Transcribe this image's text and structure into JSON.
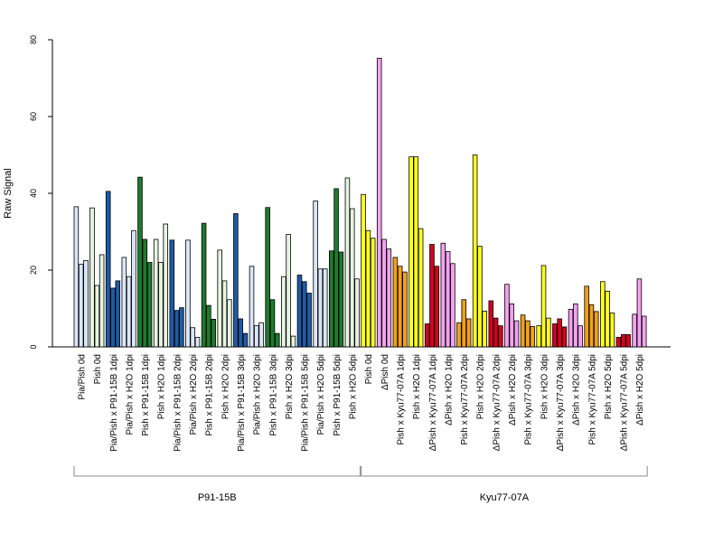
{
  "chart_data": {
    "type": "bar",
    "ylabel": "Raw Signal",
    "xlabel": "",
    "title": "",
    "ylim": [
      0,
      80
    ],
    "yticks": [
      0,
      20,
      40,
      60,
      80
    ],
    "grid": false,
    "colors": {
      "light_blue": "#dbe7f8",
      "dark_blue": "#1f5ba5",
      "light_green": "#e6f4e1",
      "dark_green": "#1f7a2e",
      "yellow": "#ffff22",
      "pink": "#f4a3f0",
      "orange": "#f2a11c",
      "red": "#d4001e"
    },
    "groups": [
      {
        "label": "Pia/Pish 0d",
        "color": "light_blue",
        "values": [
          36.5,
          21.5,
          22.5
        ]
      },
      {
        "label": "Pish 0d",
        "color": "light_green",
        "values": [
          36.2,
          16.0,
          24.0
        ]
      },
      {
        "label": "Pia/Pish x P91-15B 1dpi",
        "color": "dark_blue",
        "values": [
          40.5,
          15.3,
          17.2
        ]
      },
      {
        "label": "Pia/Pish x H2O 1dpi",
        "color": "light_blue",
        "values": [
          23.3,
          18.3,
          30.3
        ]
      },
      {
        "label": "Pish x P91-15B 1dpi",
        "color": "dark_green",
        "values": [
          44.2,
          28.0,
          22.0
        ]
      },
      {
        "label": "Pish x H2O 1dpi",
        "color": "light_green",
        "values": [
          28.0,
          22.0,
          32.0
        ]
      },
      {
        "label": "Pia/Pish x P91-15B 2dpi",
        "color": "dark_blue",
        "values": [
          27.8,
          9.5,
          10.2
        ]
      },
      {
        "label": "Pia/Pish x H2O 2dpi",
        "color": "light_blue",
        "values": [
          27.8,
          5.0,
          2.5
        ]
      },
      {
        "label": "Pish x P91-15B 2dpi",
        "color": "dark_green",
        "values": [
          32.2,
          10.8,
          7.2
        ]
      },
      {
        "label": "Pish x H2O 2dpi",
        "color": "light_green",
        "values": [
          25.2,
          17.2,
          12.3
        ]
      },
      {
        "label": "Pia/Pish x P91-15B 3dpi",
        "color": "dark_blue",
        "values": [
          34.7,
          7.3,
          3.5
        ]
      },
      {
        "label": "Pia/Pish x H2O 3dpi",
        "color": "light_blue",
        "values": [
          21.0,
          5.5,
          6.3
        ]
      },
      {
        "label": "Pish x P91-15B 3dpi",
        "color": "dark_green",
        "values": [
          36.3,
          12.3,
          3.5
        ]
      },
      {
        "label": "Pish x H2O 3dpi",
        "color": "light_green",
        "values": [
          18.3,
          29.3,
          2.8
        ]
      },
      {
        "label": "Pia/Pish x P91-15B 5dpi",
        "color": "dark_blue",
        "values": [
          18.7,
          17.0,
          14.0
        ]
      },
      {
        "label": "Pia/Pish x H2O 5dpi",
        "color": "light_blue",
        "values": [
          38.0,
          20.3,
          20.3
        ]
      },
      {
        "label": "Pish x P91-15B 5dpi",
        "color": "dark_green",
        "values": [
          25.0,
          41.2,
          24.7
        ]
      },
      {
        "label": "Pish x H2O 5dpi",
        "color": "light_green",
        "values": [
          44.0,
          36.0,
          17.7
        ]
      },
      {
        "label": "Pish 0d",
        "color": "yellow",
        "values": [
          39.7,
          30.3,
          28.3
        ]
      },
      {
        "label": "ΔPish 0d",
        "color": "pink",
        "values": [
          75.2,
          28.0,
          25.5
        ]
      },
      {
        "label": "Pish x Kyu77-07A 1dpi",
        "color": "orange",
        "values": [
          23.3,
          21.0,
          19.5
        ]
      },
      {
        "label": "Pish x H2O 1dpi",
        "color": "yellow",
        "values": [
          49.5,
          49.5,
          30.8
        ]
      },
      {
        "label": "ΔPish x Kyu77-07A 1dpi",
        "color": "red",
        "values": [
          6.0,
          26.7,
          21.0
        ]
      },
      {
        "label": "ΔPish x H2O 1dpi",
        "color": "pink",
        "values": [
          27.0,
          24.8,
          21.7
        ]
      },
      {
        "label": "Pish x Kyu77-07A 2dpi",
        "color": "orange",
        "values": [
          6.3,
          12.3,
          7.3
        ]
      },
      {
        "label": "Pish x H2O 2dpi",
        "color": "yellow",
        "values": [
          50.0,
          26.2,
          9.3
        ]
      },
      {
        "label": "ΔPish x Kyu77-07A 2dpi",
        "color": "red",
        "values": [
          12.0,
          7.5,
          5.5
        ]
      },
      {
        "label": "ΔPish x H2O 2dpi",
        "color": "pink",
        "values": [
          16.3,
          11.2,
          6.8
        ]
      },
      {
        "label": "Pish x Kyu77-07A 3dpi",
        "color": "orange",
        "values": [
          8.3,
          6.8,
          5.3
        ]
      },
      {
        "label": "Pish x H2O 3dpi",
        "color": "yellow",
        "values": [
          5.5,
          21.2,
          7.5
        ]
      },
      {
        "label": "ΔPish x Kyu77-07A 3dpi",
        "color": "red",
        "values": [
          6.0,
          7.3,
          5.2
        ]
      },
      {
        "label": "ΔPish x H2O 3dpi",
        "color": "pink",
        "values": [
          9.8,
          11.2,
          5.5
        ]
      },
      {
        "label": "Pish x Kyu77-07A 5dpi",
        "color": "orange",
        "values": [
          15.8,
          11.0,
          9.2
        ]
      },
      {
        "label": "Pish x H2O 5dpi",
        "color": "yellow",
        "values": [
          17.0,
          14.5,
          8.8
        ]
      },
      {
        "label": "ΔPish x Kyu77-07A 5dpi",
        "color": "red",
        "values": [
          2.5,
          3.2,
          3.2
        ]
      },
      {
        "label": "ΔPish x H2O 5dpi",
        "color": "pink",
        "values": [
          8.5,
          17.7,
          8.0
        ]
      }
    ],
    "brackets": [
      {
        "label": "P91-15B",
        "start_group": 0,
        "end_group": 17
      },
      {
        "label": "Kyu77-07A",
        "start_group": 18,
        "end_group": 35
      }
    ]
  }
}
